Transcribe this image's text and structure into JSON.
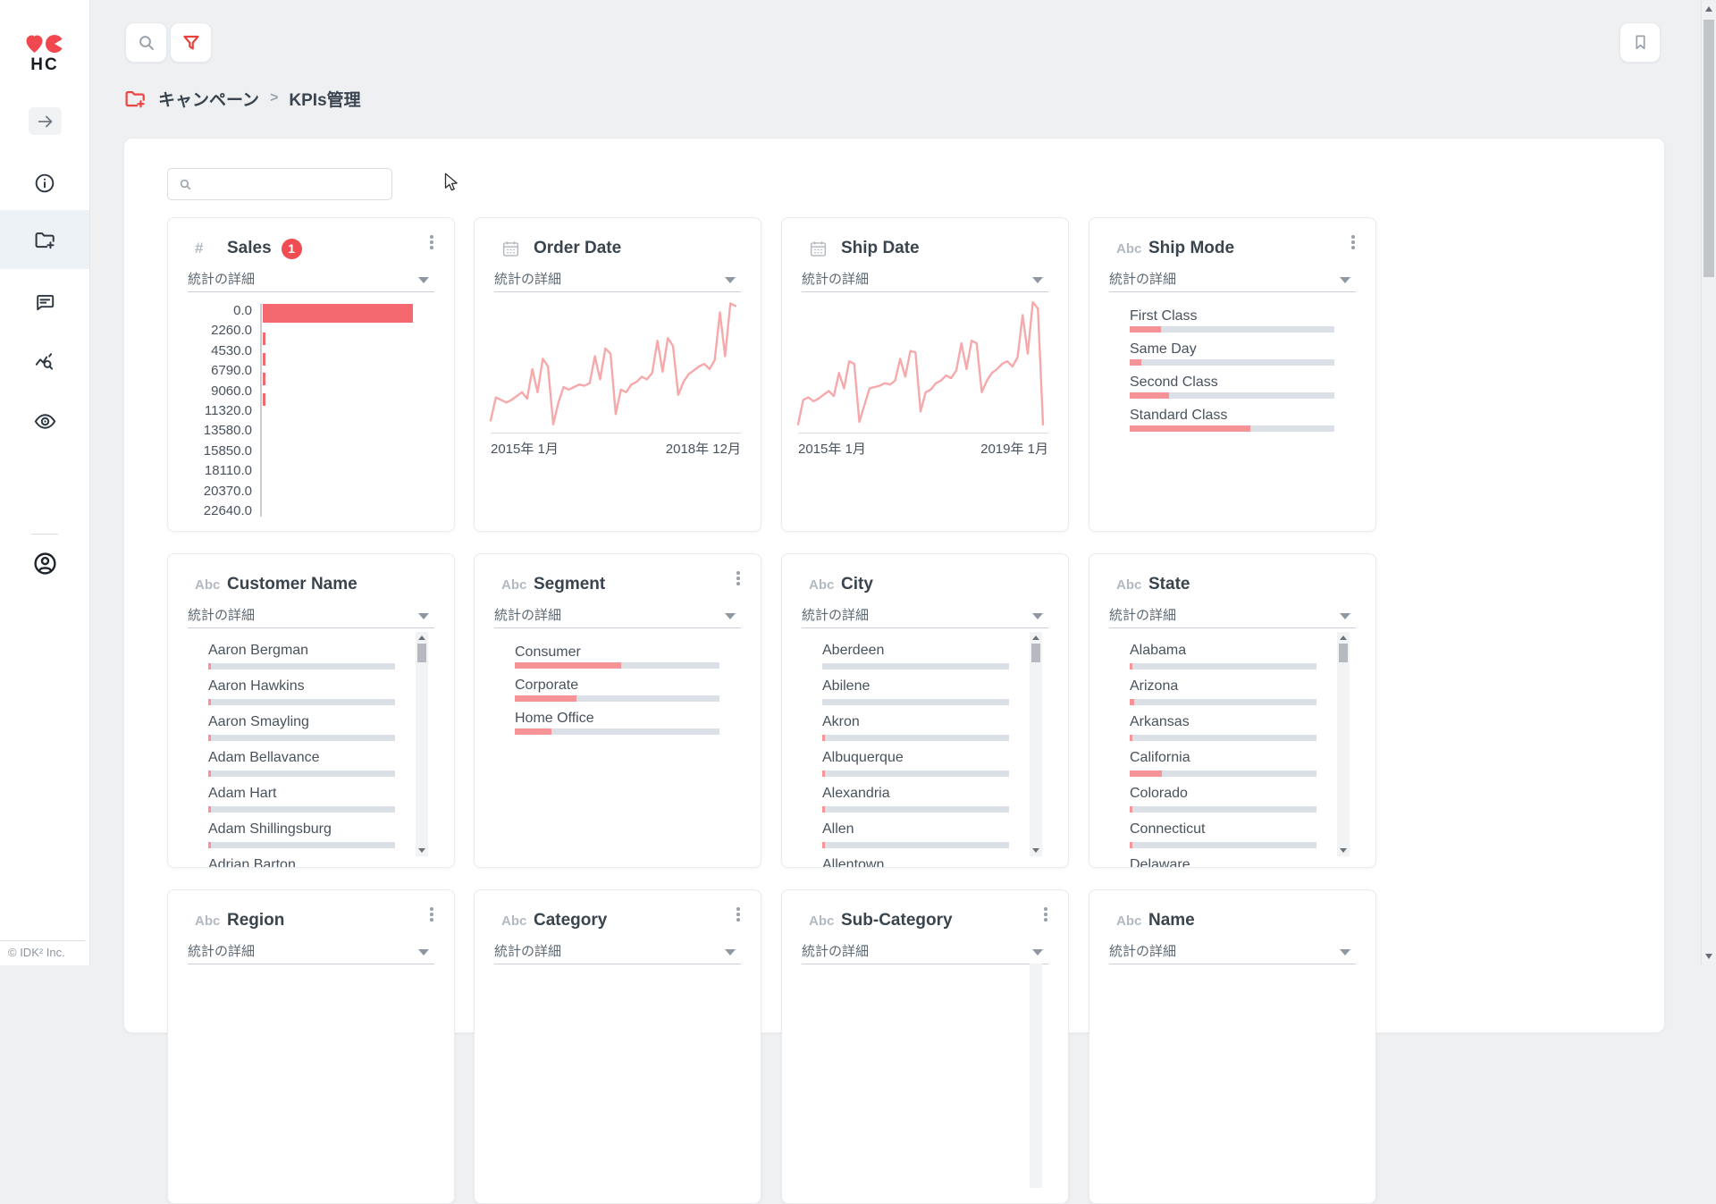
{
  "app": {
    "logo_text": "HC",
    "footer": "© IDK² Inc."
  },
  "sidebar": {
    "items": [
      {
        "name": "collapse",
        "icon": "arrow-right-icon"
      },
      {
        "name": "info",
        "icon": "info-icon"
      },
      {
        "name": "campaigns",
        "icon": "folder-plus-icon",
        "active": true
      },
      {
        "name": "comments",
        "icon": "comment-icon"
      },
      {
        "name": "analytics",
        "icon": "chart-search-icon"
      },
      {
        "name": "watch",
        "icon": "eye-icon"
      },
      {
        "name": "account",
        "icon": "user-icon"
      }
    ]
  },
  "topbar": {
    "search_icon": "magnifier",
    "filter_icon": "funnel",
    "bookmark_icon": "bookmark"
  },
  "breadcrumb": {
    "icon": "folder-plus-red",
    "items": [
      "キャンペーン",
      "KPIs管理"
    ],
    "separator": ">"
  },
  "content": {
    "search_input": {
      "value": "",
      "placeholder": ""
    }
  },
  "colors": {
    "accent": "#ef4d52",
    "bar_fill": "#f59396",
    "bar_track": "#dbe0e7",
    "line": "#f6a9ab",
    "sales_bar": "#f3696f"
  },
  "cards": [
    {
      "title": "Sales",
      "type": "number",
      "type_label": "#",
      "badge": "1",
      "menu": true,
      "stats_label": "統計の詳細",
      "chart": {
        "kind": "histogram",
        "axis_labels": [
          "0.0",
          "2260.0",
          "4530.0",
          "6790.0",
          "9060.0",
          "11320.0",
          "13580.0",
          "15850.0",
          "18110.0",
          "20370.0",
          "22640.0"
        ],
        "bins": [
          100,
          1,
          1,
          1,
          1,
          0,
          0,
          0,
          0,
          0
        ]
      }
    },
    {
      "title": "Order Date",
      "type": "date",
      "menu": false,
      "stats_label": "統計の詳細",
      "chart": {
        "kind": "line",
        "x_start": "2015年 1月",
        "x_end": "2018年 12月",
        "points": [
          8,
          26,
          24,
          22,
          24,
          27,
          30,
          25,
          48,
          30,
          56,
          50,
          5,
          22,
          34,
          32,
          34,
          36,
          35,
          37,
          58,
          40,
          64,
          60,
          13,
          32,
          30,
          36,
          38,
          42,
          40,
          45,
          70,
          46,
          72,
          66,
          28,
          38,
          44,
          47,
          50,
          52,
          48,
          55,
          92,
          58,
          99,
          97
        ]
      }
    },
    {
      "title": "Ship Date",
      "type": "date",
      "menu": false,
      "stats_label": "統計の詳細",
      "chart": {
        "kind": "line",
        "x_start": "2015年 1月",
        "x_end": "2019年 1月",
        "points": [
          5,
          24,
          26,
          23,
          25,
          28,
          31,
          27,
          45,
          33,
          54,
          52,
          7,
          20,
          33,
          34,
          35,
          37,
          36,
          39,
          56,
          42,
          62,
          61,
          15,
          30,
          32,
          37,
          39,
          43,
          41,
          47,
          68,
          48,
          70,
          68,
          30,
          39,
          45,
          48,
          52,
          54,
          50,
          57,
          90,
          60,
          100,
          95,
          5
        ]
      }
    },
    {
      "title": "Ship Mode",
      "type": "text",
      "type_label": "Abc",
      "menu": true,
      "stats_label": "統計の詳細",
      "chart": {
        "kind": "bars",
        "items": [
          {
            "label": "First Class",
            "value": 15.5
          },
          {
            "label": "Same Day",
            "value": 5.5
          },
          {
            "label": "Second Class",
            "value": 19
          },
          {
            "label": "Standard Class",
            "value": 59
          }
        ]
      }
    },
    {
      "title": "Customer Name",
      "type": "text",
      "type_label": "Abc",
      "menu": false,
      "stats_label": "統計の詳細",
      "chart": {
        "kind": "list",
        "items": [
          {
            "label": "Aaron Bergman",
            "value": 1.5
          },
          {
            "label": "Aaron Hawkins",
            "value": 1.5
          },
          {
            "label": "Aaron Smayling",
            "value": 1.5
          },
          {
            "label": "Adam Bellavance",
            "value": 1.5
          },
          {
            "label": "Adam Hart",
            "value": 1.5
          },
          {
            "label": "Adam Shillingsburg",
            "value": 1.5
          },
          {
            "label": "Adrian Barton",
            "value": 1.5
          }
        ]
      }
    },
    {
      "title": "Segment",
      "type": "text",
      "type_label": "Abc",
      "menu": true,
      "stats_label": "統計の詳細",
      "chart": {
        "kind": "bars",
        "items": [
          {
            "label": "Consumer",
            "value": 52
          },
          {
            "label": "Corporate",
            "value": 30
          },
          {
            "label": "Home Office",
            "value": 18
          }
        ]
      }
    },
    {
      "title": "City",
      "type": "text",
      "type_label": "Abc",
      "menu": false,
      "stats_label": "統計の詳細",
      "chart": {
        "kind": "list",
        "items": [
          {
            "label": "Aberdeen",
            "value": 0
          },
          {
            "label": "Abilene",
            "value": 0
          },
          {
            "label": "Akron",
            "value": 0.9
          },
          {
            "label": "Albuquerque",
            "value": 1.1
          },
          {
            "label": "Alexandria",
            "value": 0.9
          },
          {
            "label": "Allen",
            "value": 0.9
          },
          {
            "label": "Allentown",
            "value": 0
          }
        ]
      }
    },
    {
      "title": "State",
      "type": "text",
      "type_label": "Abc",
      "menu": false,
      "stats_label": "統計の詳細",
      "chart": {
        "kind": "list",
        "items": [
          {
            "label": "Alabama",
            "value": 1.3
          },
          {
            "label": "Arizona",
            "value": 2.3
          },
          {
            "label": "Arkansas",
            "value": 1.3
          },
          {
            "label": "California",
            "value": 17
          },
          {
            "label": "Colorado",
            "value": 1.3
          },
          {
            "label": "Connecticut",
            "value": 1.3
          },
          {
            "label": "Delaware",
            "value": 0
          }
        ]
      }
    },
    {
      "title": "Region",
      "type": "text",
      "type_label": "Abc",
      "menu": true,
      "stats_label": "統計の詳細",
      "chart": {
        "kind": "none"
      }
    },
    {
      "title": "Category",
      "type": "text",
      "type_label": "Abc",
      "menu": true,
      "stats_label": "統計の詳細",
      "chart": {
        "kind": "none"
      }
    },
    {
      "title": "Sub-Category",
      "type": "text",
      "type_label": "Abc",
      "menu": true,
      "stats_label": "統計の詳細",
      "chart": {
        "kind": "none",
        "scroll_stub": true
      }
    },
    {
      "title": "Name",
      "type": "text",
      "type_label": "Abc",
      "menu": false,
      "stats_label": "統計の詳細",
      "chart": {
        "kind": "none"
      }
    }
  ]
}
